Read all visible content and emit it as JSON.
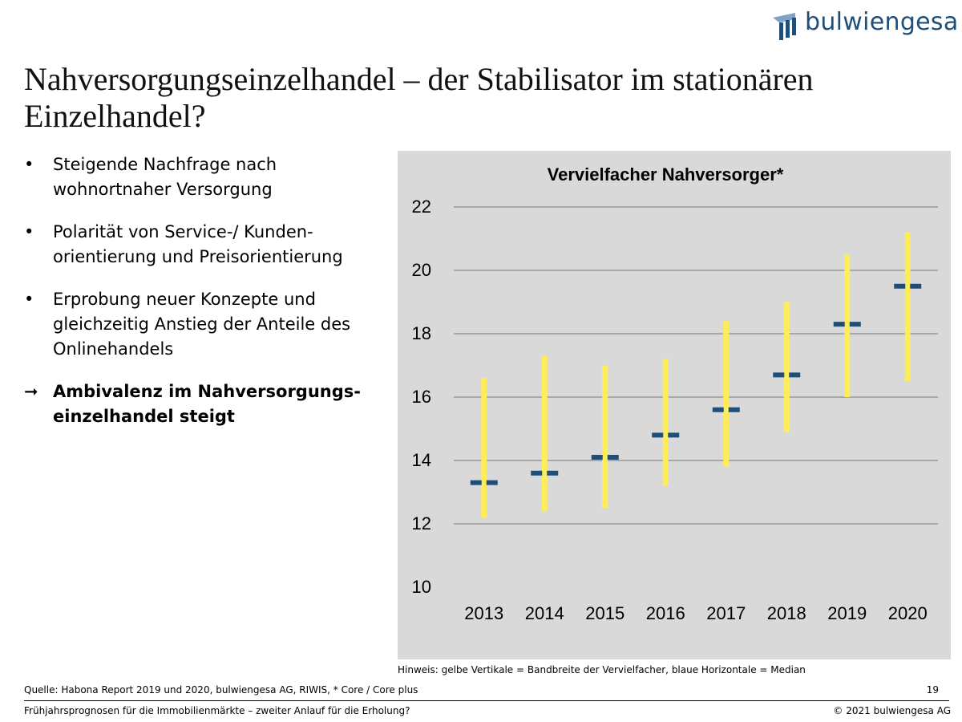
{
  "brand": {
    "logo_text": "bulwiengesa",
    "logo_color": "#1f4e79"
  },
  "slide": {
    "title": "Nahversorgungseinzelhandel – der Stabilisator im stationären Einzelhandel?",
    "bullets": [
      {
        "marker": "•",
        "text": "Steigende Nachfrage nach wohnortnaher Versorgung"
      },
      {
        "marker": "•",
        "text": "Polarität von Service-/ Kunden-orientierung und Preisorientierung"
      },
      {
        "marker": "•",
        "text": "Erprobung neuer Konzepte und gleichzeitig Anstieg der Anteile des Onlinehandels"
      }
    ],
    "conclusion": {
      "marker": "➞",
      "text": "Ambivalenz im Nahversorgungs-einzelhandel steigt"
    },
    "hint": "Hinweis: gelbe Vertikale = Bandbreite der Vervielfacher, blaue Horizontale = Median",
    "source": "Quelle: Habona Report 2019 und 2020, bulwiengesa AG, RIWIS, * Core / Core plus",
    "page_number": "19",
    "footer": "Frühjahrsprognosen für die Immobilienmärkte – zweiter Anlauf für die Erholung?",
    "copyright": "© 2021 bulwiengesa AG"
  },
  "chart_data": {
    "type": "range-median",
    "title": "Vervielfacher Nahversorger*",
    "categories": [
      "2013",
      "2014",
      "2015",
      "2016",
      "2017",
      "2018",
      "2019",
      "2020"
    ],
    "series": [
      {
        "name": "Bandbreite",
        "min": [
          12.2,
          12.4,
          12.5,
          13.2,
          13.8,
          14.9,
          16.0,
          16.5
        ],
        "max": [
          16.6,
          17.3,
          17.0,
          17.2,
          18.4,
          19.0,
          20.5,
          21.2
        ]
      },
      {
        "name": "Median",
        "values": [
          13.3,
          13.6,
          14.1,
          14.8,
          15.6,
          16.7,
          18.3,
          19.5
        ]
      }
    ],
    "ylim": [
      10,
      22
    ],
    "yticks": [
      10,
      12,
      14,
      16,
      18,
      20,
      22
    ],
    "grid": true,
    "colors": {
      "range": "#ffec59",
      "median": "#1f4e79",
      "background": "#d9d9d9",
      "grid": "#8c8c8c"
    }
  }
}
